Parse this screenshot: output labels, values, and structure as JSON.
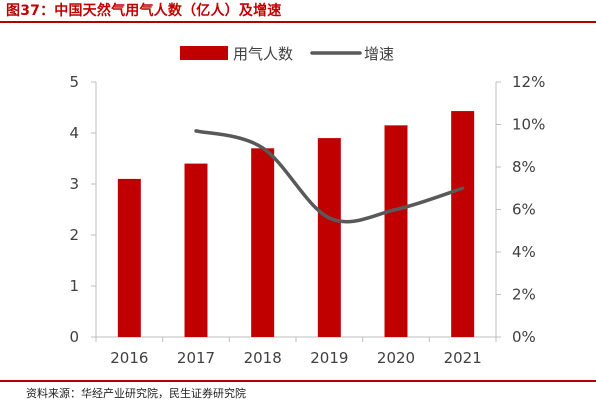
{
  "figure": {
    "title": "图37：中国天然气用气人数（亿人）及增速",
    "source": "资料来源：华经产业研究院，民生证券研究院"
  },
  "colors": {
    "bar": "#c00000",
    "line": "#595959",
    "axis": "#bfbfbf",
    "text": "#404040",
    "rule": "#b30000"
  },
  "chart_data": {
    "type": "bar",
    "title": "",
    "categories": [
      "2016",
      "2017",
      "2018",
      "2019",
      "2020",
      "2021"
    ],
    "series": [
      {
        "name": "用气人数",
        "type": "bar",
        "axis": "left",
        "values": [
          3.1,
          3.4,
          3.7,
          3.9,
          4.15,
          4.43
        ]
      },
      {
        "name": "增速",
        "type": "line",
        "axis": "right",
        "values": [
          null,
          9.7,
          8.9,
          5.6,
          6.0,
          7.0
        ]
      }
    ],
    "y_left": {
      "ylim": [
        0,
        5
      ],
      "ticks": [
        "0",
        "1",
        "2",
        "3",
        "4",
        "5"
      ]
    },
    "y_right": {
      "ylim": [
        0,
        12
      ],
      "ticks": [
        "0%",
        "2%",
        "4%",
        "6%",
        "8%",
        "10%",
        "12%"
      ]
    },
    "legend": {
      "placement": "top-center",
      "labels": [
        "用气人数",
        "增速"
      ]
    },
    "grid": false
  }
}
